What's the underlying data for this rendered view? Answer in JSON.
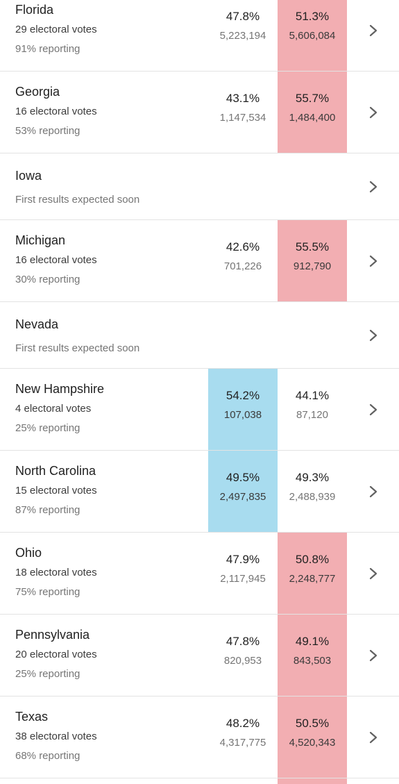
{
  "colors": {
    "dem_win": "#a8dcef",
    "rep_win": "#f2aeb2",
    "divider": "#e3e3e3",
    "chevron": "#616161"
  },
  "chevron_icon": "chevron-right-icon",
  "states": [
    {
      "name": "Florida",
      "electoral": "29 electoral votes",
      "reporting": "91% reporting",
      "dem_pct": "47.8%",
      "dem_votes": "5,223,194",
      "rep_pct": "51.3%",
      "rep_votes": "5,606,084",
      "leader": "rep"
    },
    {
      "name": "Georgia",
      "electoral": "16 electoral votes",
      "reporting": "53% reporting",
      "dem_pct": "43.1%",
      "dem_votes": "1,147,534",
      "rep_pct": "55.7%",
      "rep_votes": "1,484,400",
      "leader": "rep"
    },
    {
      "name": "Iowa",
      "status": "First results expected soon"
    },
    {
      "name": "Michigan",
      "electoral": "16 electoral votes",
      "reporting": "30% reporting",
      "dem_pct": "42.6%",
      "dem_votes": "701,226",
      "rep_pct": "55.5%",
      "rep_votes": "912,790",
      "leader": "rep"
    },
    {
      "name": "Nevada",
      "status": "First results expected soon"
    },
    {
      "name": "New Hampshire",
      "electoral": "4 electoral votes",
      "reporting": "25% reporting",
      "dem_pct": "54.2%",
      "dem_votes": "107,038",
      "rep_pct": "44.1%",
      "rep_votes": "87,120",
      "leader": "dem"
    },
    {
      "name": "North Carolina",
      "electoral": "15 electoral votes",
      "reporting": "87% reporting",
      "dem_pct": "49.5%",
      "dem_votes": "2,497,835",
      "rep_pct": "49.3%",
      "rep_votes": "2,488,939",
      "leader": "dem"
    },
    {
      "name": "Ohio",
      "electoral": "18 electoral votes",
      "reporting": "75% reporting",
      "dem_pct": "47.9%",
      "dem_votes": "2,117,945",
      "rep_pct": "50.8%",
      "rep_votes": "2,248,777",
      "leader": "rep"
    },
    {
      "name": "Pennsylvania",
      "electoral": "20 electoral votes",
      "reporting": "25% reporting",
      "dem_pct": "47.8%",
      "dem_votes": "820,953",
      "rep_pct": "49.1%",
      "rep_votes": "843,503",
      "leader": "rep"
    },
    {
      "name": "Texas",
      "electoral": "38 electoral votes",
      "reporting": "68% reporting",
      "dem_pct": "48.2%",
      "dem_votes": "4,317,775",
      "rep_pct": "50.5%",
      "rep_votes": "4,520,343",
      "leader": "rep"
    }
  ]
}
